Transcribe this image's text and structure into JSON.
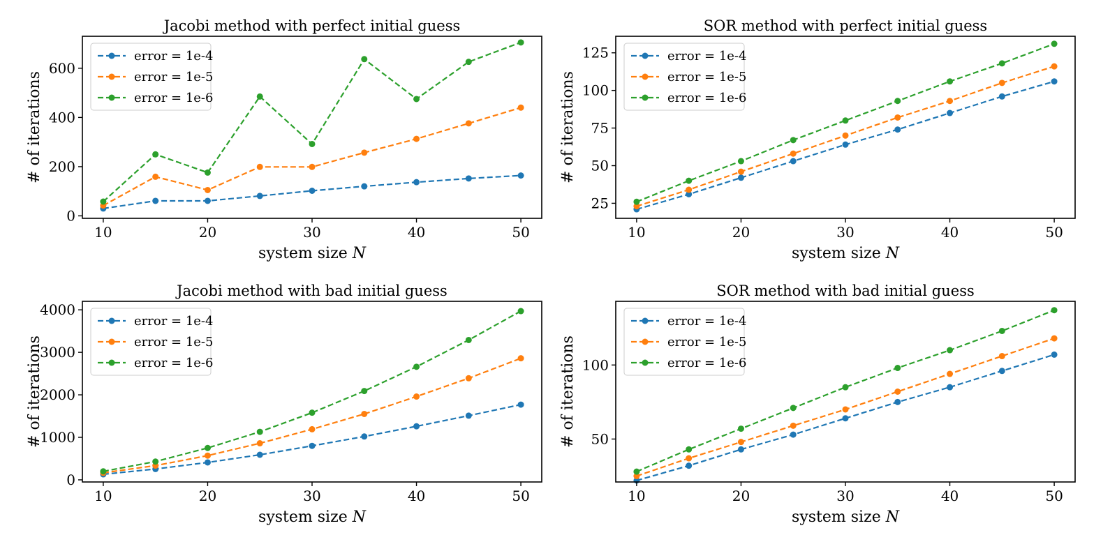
{
  "chart_data": [
    {
      "type": "line",
      "title": "Jacobi method with perfect initial guess",
      "xlabel": "system size ",
      "xlabel_var": "N",
      "ylabel": "# of iterations",
      "x": [
        10,
        15,
        20,
        25,
        30,
        35,
        40,
        45,
        50
      ],
      "xlim": [
        8,
        52
      ],
      "ylim": [
        -10,
        730
      ],
      "xticks": [
        10,
        20,
        30,
        40,
        50
      ],
      "yticks": [
        0,
        200,
        400,
        600
      ],
      "legend": "upper-left",
      "grid": false,
      "series": [
        {
          "name": "error = 1e-4",
          "color": "#1f77b4",
          "values": [
            30,
            61,
            61,
            81,
            102,
            120,
            137,
            152,
            164
          ]
        },
        {
          "name": "error = 1e-5",
          "color": "#ff7f0e",
          "values": [
            42,
            159,
            105,
            199,
            199,
            257,
            313,
            376,
            440
          ]
        },
        {
          "name": "error = 1e-6",
          "color": "#2ca02c",
          "values": [
            58,
            250,
            176,
            485,
            292,
            637,
            475,
            626,
            705
          ]
        }
      ]
    },
    {
      "type": "line",
      "title": "SOR method with perfect initial guess",
      "xlabel": "system size ",
      "xlabel_var": "N",
      "ylabel": "# of iterations",
      "x": [
        10,
        15,
        20,
        25,
        30,
        35,
        40,
        45,
        50
      ],
      "xlim": [
        8,
        52
      ],
      "ylim": [
        15,
        136
      ],
      "xticks": [
        10,
        20,
        30,
        40,
        50
      ],
      "yticks": [
        25,
        50,
        75,
        100,
        125
      ],
      "legend": "upper-left",
      "grid": false,
      "series": [
        {
          "name": "error = 1e-4",
          "color": "#1f77b4",
          "values": [
            21,
            31,
            42,
            53,
            64,
            74,
            85,
            96,
            106
          ]
        },
        {
          "name": "error = 1e-5",
          "color": "#ff7f0e",
          "values": [
            23,
            34,
            46,
            58,
            70,
            82,
            93,
            105,
            116
          ]
        },
        {
          "name": "error = 1e-6",
          "color": "#2ca02c",
          "values": [
            26,
            40,
            53,
            67,
            80,
            93,
            106,
            118,
            131
          ]
        }
      ]
    },
    {
      "type": "line",
      "title": "Jacobi method with bad initial guess",
      "xlabel": "system size ",
      "xlabel_var": "N",
      "ylabel": "# of iterations",
      "x": [
        10,
        15,
        20,
        25,
        30,
        35,
        40,
        45,
        50
      ],
      "xlim": [
        8,
        52
      ],
      "ylim": [
        -50,
        4200
      ],
      "xticks": [
        10,
        20,
        30,
        40,
        50
      ],
      "yticks": [
        0,
        1000,
        2000,
        3000,
        4000
      ],
      "legend": "upper-left",
      "grid": false,
      "series": [
        {
          "name": "error = 1e-4",
          "color": "#1f77b4",
          "values": [
            130,
            255,
            410,
            590,
            800,
            1020,
            1260,
            1510,
            1770
          ]
        },
        {
          "name": "error = 1e-5",
          "color": "#ff7f0e",
          "values": [
            165,
            335,
            570,
            860,
            1190,
            1550,
            1960,
            2390,
            2860
          ]
        },
        {
          "name": "error = 1e-6",
          "color": "#2ca02c",
          "values": [
            200,
            430,
            750,
            1130,
            1580,
            2090,
            2660,
            3290,
            3970
          ]
        }
      ]
    },
    {
      "type": "line",
      "title": "SOR method with bad initial guess",
      "xlabel": "system size ",
      "xlabel_var": "N",
      "ylabel": "# of iterations",
      "x": [
        10,
        15,
        20,
        25,
        30,
        35,
        40,
        45,
        50
      ],
      "xlim": [
        8,
        52
      ],
      "ylim": [
        21,
        143
      ],
      "xticks": [
        10,
        20,
        30,
        40,
        50
      ],
      "yticks": [
        50,
        100
      ],
      "legend": "upper-left",
      "grid": false,
      "series": [
        {
          "name": "error = 1e-4",
          "color": "#1f77b4",
          "values": [
            22,
            32,
            43,
            53,
            64,
            75,
            85,
            96,
            107
          ]
        },
        {
          "name": "error = 1e-5",
          "color": "#ff7f0e",
          "values": [
            25,
            37,
            48,
            59,
            70,
            82,
            94,
            106,
            118
          ]
        },
        {
          "name": "error = 1e-6",
          "color": "#2ca02c",
          "values": [
            28,
            43,
            57,
            71,
            85,
            98,
            110,
            123,
            137
          ]
        }
      ]
    }
  ]
}
